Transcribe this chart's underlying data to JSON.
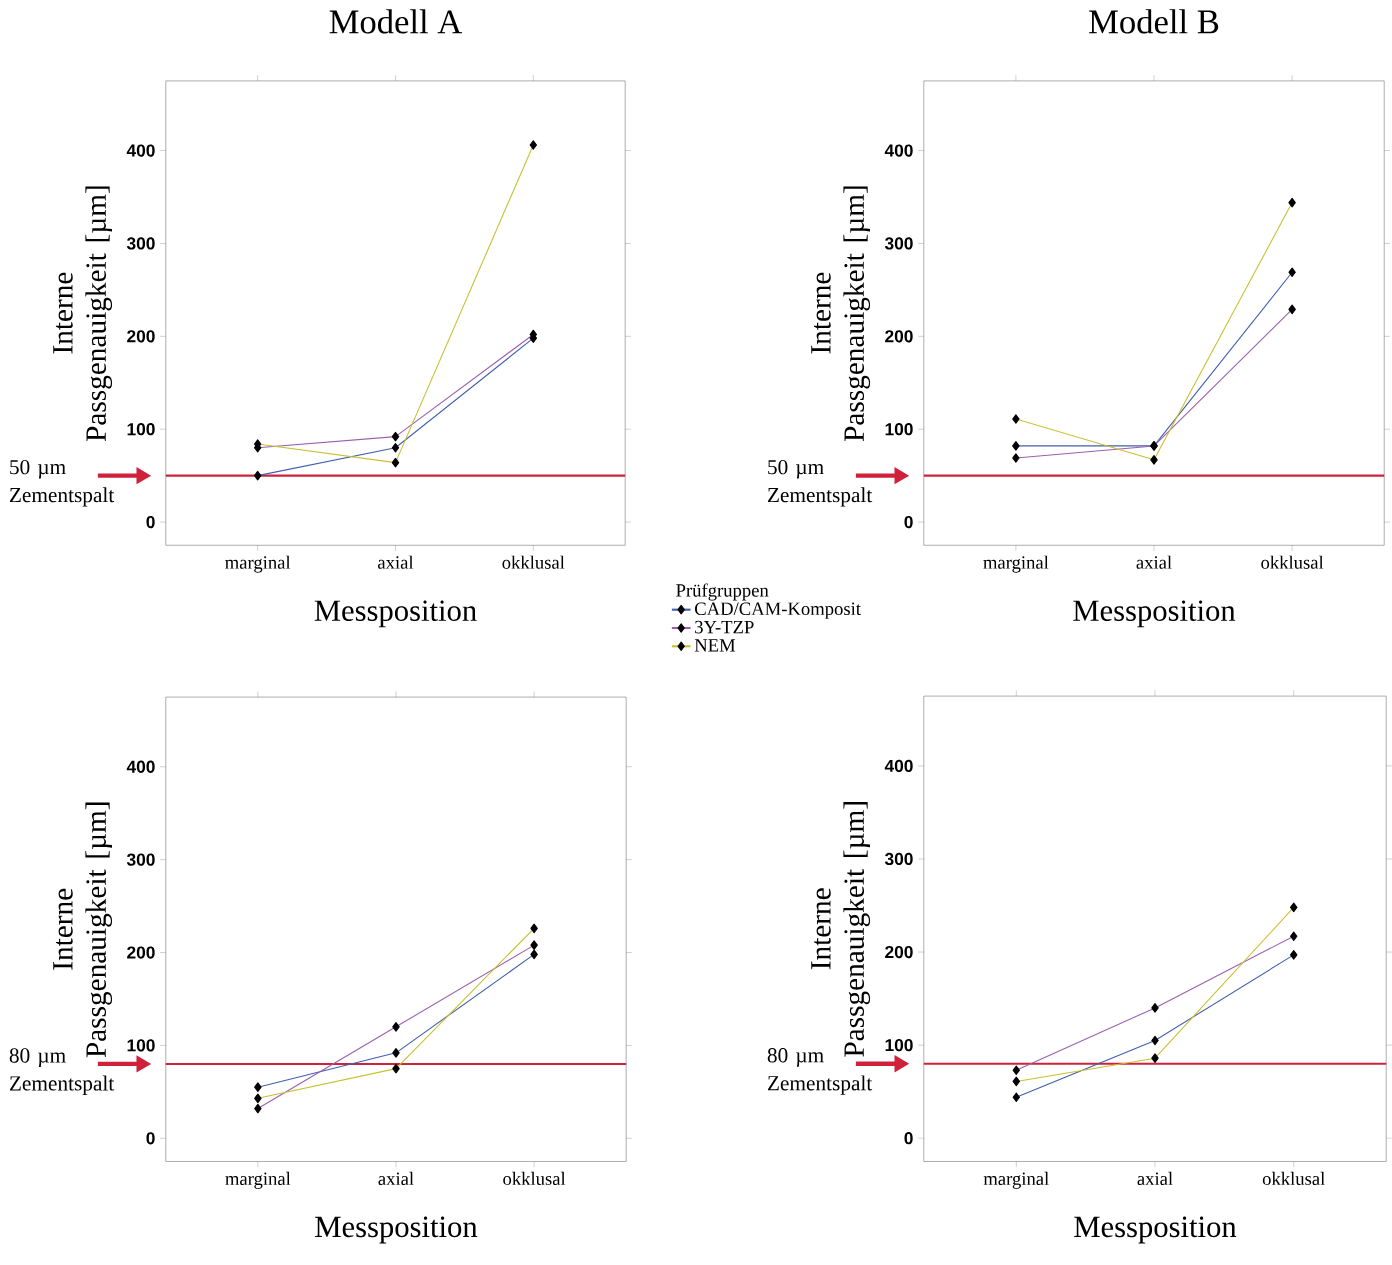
{
  "chart_data": [
    {
      "type": "line",
      "title": "Modell A",
      "xlabel": "Messposition",
      "ylabel": "Interne Passgenauigkeit [µm]",
      "categories": [
        "marginal",
        "axial",
        "okklusal"
      ],
      "ylim": [
        -25,
        475
      ],
      "yticks": [
        0,
        100,
        200,
        300,
        400
      ],
      "marker": "diamond",
      "legend": "bottom right",
      "legend_title": "Prüfgruppen",
      "series": [
        {
          "name": "CAD/CAM-Komposit",
          "color": "#3f5fae",
          "values": [
            50,
            80,
            198
          ]
        },
        {
          "name": "3Y-TZP",
          "color": "#9b5fb0",
          "values": [
            80,
            92,
            202
          ]
        },
        {
          "name": "NEM",
          "color": "#c8c030",
          "values": [
            84,
            64,
            406
          ]
        }
      ],
      "ref_lines": [
        {
          "axis": "y",
          "value": 50,
          "label": "50 µm Zementspalt",
          "color": "#d0213a"
        }
      ]
    },
    {
      "type": "line",
      "title": "Modell B",
      "xlabel": "Messposition",
      "ylabel": "Interne Passgenauigkeit [µm]",
      "categories": [
        "marginal",
        "axial",
        "okklusal"
      ],
      "ylim": [
        -25,
        475
      ],
      "yticks": [
        0,
        100,
        200,
        300,
        400
      ],
      "marker": "diamond",
      "series": [
        {
          "color": "#3f5fae",
          "values": [
            82,
            82,
            269
          ]
        },
        {
          "color": "#9b5fb0",
          "values": [
            69,
            82,
            229
          ]
        },
        {
          "color": "#c8c030",
          "values": [
            111,
            67,
            344
          ]
        }
      ],
      "ref_lines": [
        {
          "axis": "y",
          "value": 50,
          "label": "50 µm Zementspalt",
          "color": "#d0213a"
        }
      ]
    },
    {
      "type": "line",
      "xlabel": "Messposition",
      "ylabel": "Interne Passgenauigkeit [µm]",
      "categories": [
        "marginal",
        "axial",
        "okklusal"
      ],
      "ylim": [
        -25,
        475
      ],
      "yticks": [
        0,
        100,
        200,
        300,
        400
      ],
      "marker": "diamond",
      "series": [
        {
          "color": "#3f5fae",
          "values": [
            55,
            92,
            198
          ]
        },
        {
          "color": "#9b5fb0",
          "values": [
            32,
            120,
            208
          ]
        },
        {
          "color": "#c8c030",
          "values": [
            43,
            75,
            226
          ]
        }
      ],
      "ref_lines": [
        {
          "axis": "y",
          "value": 80,
          "label": "80 µm Zementspalt",
          "color": "#d0213a"
        }
      ]
    },
    {
      "type": "line",
      "xlabel": "Messposition",
      "ylabel": "Interne Passgenauigkeit [µm]",
      "categories": [
        "marginal",
        "axial",
        "okklusal"
      ],
      "ylim": [
        -25,
        475
      ],
      "yticks": [
        0,
        100,
        200,
        300,
        400
      ],
      "marker": "diamond",
      "series": [
        {
          "color": "#3f5fae",
          "values": [
            44,
            105,
            197
          ]
        },
        {
          "color": "#9b5fb0",
          "values": [
            73,
            140,
            217
          ]
        },
        {
          "color": "#c8c030",
          "values": [
            61,
            86,
            248
          ]
        }
      ],
      "ref_lines": [
        {
          "axis": "y",
          "value": 80,
          "label": "80 µm Zementspalt",
          "color": "#d0213a"
        }
      ]
    }
  ]
}
